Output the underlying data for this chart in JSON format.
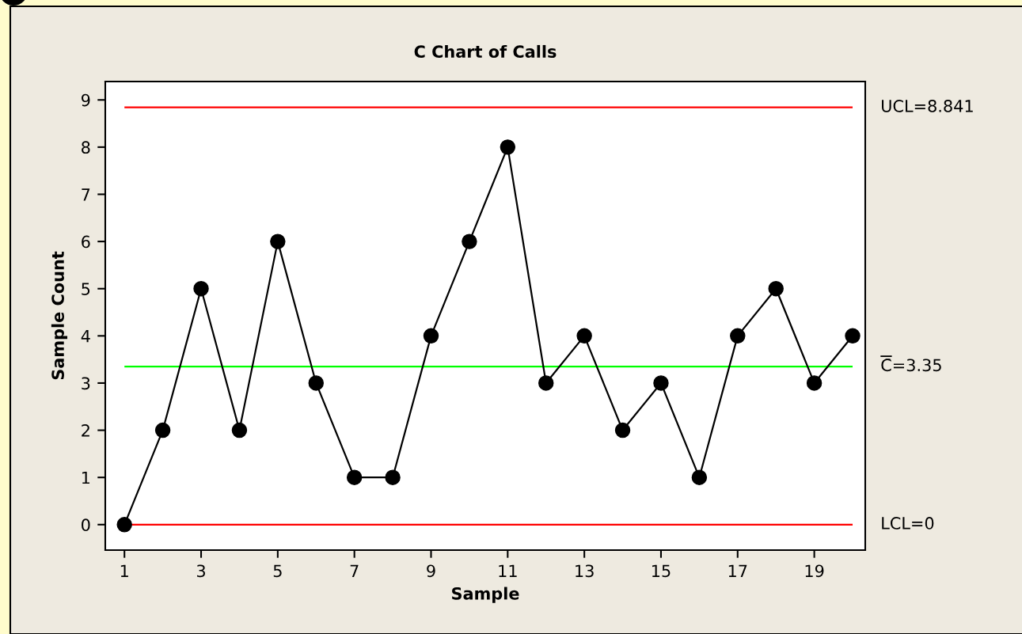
{
  "chart_data": {
    "type": "line",
    "title": "C Chart of Calls",
    "xlabel": "Sample",
    "ylabel": "Sample Count",
    "x": [
      1,
      2,
      3,
      4,
      5,
      6,
      7,
      8,
      9,
      10,
      11,
      12,
      13,
      14,
      15,
      16,
      17,
      18,
      19,
      20
    ],
    "series": [
      {
        "color": "#000000",
        "values": [
          0,
          2,
          5,
          2,
          6,
          3,
          1,
          1,
          4,
          6,
          8,
          3,
          4,
          2,
          3,
          1,
          4,
          5,
          3,
          4
        ]
      }
    ],
    "xlim": [
      0.5,
      20.33
    ],
    "ylim": [
      -0.54,
      9.39
    ],
    "xticks": [
      1,
      3,
      5,
      7,
      9,
      11,
      13,
      15,
      17,
      19
    ],
    "yticks": [
      0,
      1,
      2,
      3,
      4,
      5,
      6,
      7,
      8,
      9
    ],
    "ref_lines": [
      {
        "axis": "y",
        "value": 8.841,
        "label": "UCL=8.841",
        "color": "#ff0000"
      },
      {
        "axis": "y",
        "value": 3.35,
        "label": "C̄=3.35",
        "color": "#00ff00"
      },
      {
        "axis": "y",
        "value": 0,
        "label": "LCL=0",
        "color": "#ff0000"
      }
    ],
    "marker": "circle",
    "line_style": "solid",
    "grid": false,
    "legend": false
  }
}
